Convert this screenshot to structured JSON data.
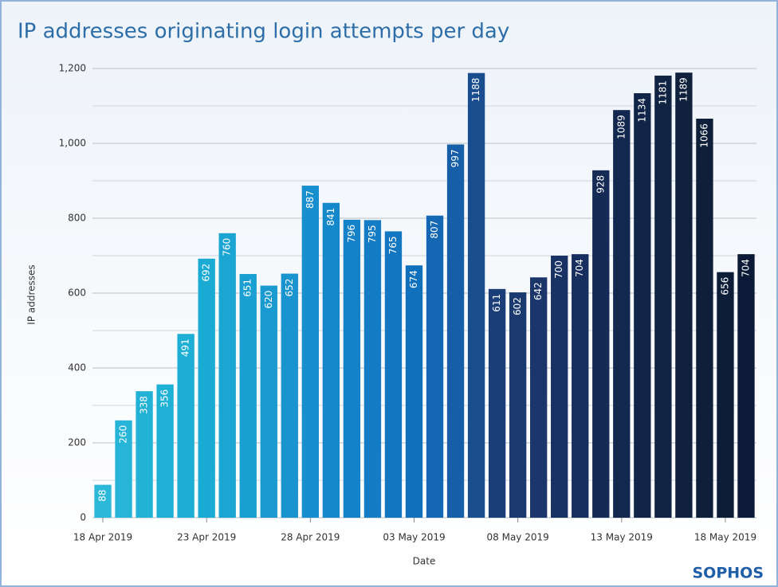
{
  "chart_data": {
    "type": "bar",
    "title": "IP addresses originating login attempts per day",
    "xlabel": "Date",
    "ylabel": "IP addresses",
    "brand": "SOPHOS",
    "categories": [
      "18 Apr 2019",
      null,
      null,
      null,
      null,
      "23 Apr 2019",
      null,
      null,
      null,
      null,
      "28 Apr 2019",
      null,
      null,
      null,
      null,
      "03 May 2019",
      null,
      null,
      null,
      null,
      "08 May 2019",
      null,
      null,
      null,
      null,
      "13 May 2019",
      null,
      null,
      null,
      null,
      "18 May 2019",
      null
    ],
    "values": [
      88,
      260,
      338,
      356,
      491,
      692,
      760,
      651,
      620,
      652,
      887,
      841,
      796,
      795,
      765,
      674,
      807,
      997,
      1188,
      611,
      602,
      642,
      700,
      704,
      928,
      1089,
      1134,
      1181,
      1189,
      1066,
      656,
      704
    ],
    "colors": [
      "#2cb8d8",
      "#26b5d8",
      "#22b2d6",
      "#1fb0d5",
      "#1caed4",
      "#19abd3",
      "#1ba5d3",
      "#1a9fd2",
      "#1a9ad1",
      "#1994cf",
      "#178ecd",
      "#1588cb",
      "#1482c8",
      "#137cc4",
      "#1276c0",
      "#1170bb",
      "#1468b3",
      "#175ea8",
      "#1a4d8e",
      "#1b3e78",
      "#1b3a70",
      "#1a366a",
      "#193264",
      "#172e5e",
      "#152b56",
      "#13284f",
      "#112548",
      "#102342",
      "#0f213d",
      "#0e1f3a",
      "#0d1d38",
      "#0c1a38"
    ],
    "ylim": [
      0,
      1200
    ],
    "yticks": [
      0,
      200,
      400,
      600,
      800,
      {
        "value": 1000,
        "label": "1,000"
      },
      {
        "value": 1200,
        "label": "1,200"
      }
    ],
    "minor_yticks": [
      100,
      300,
      500,
      700,
      900,
      1100
    ],
    "grid": true
  }
}
